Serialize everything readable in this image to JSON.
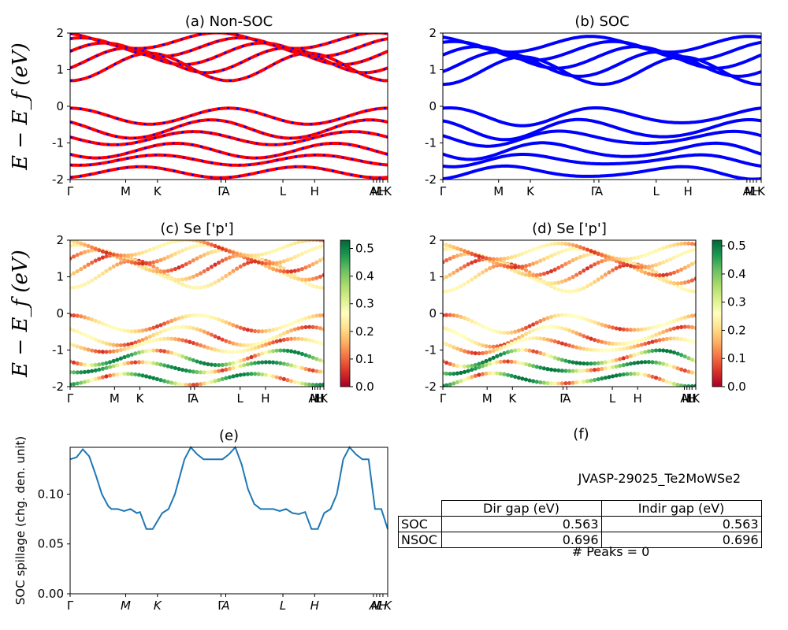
{
  "chart_data": [
    {
      "id": "a",
      "type": "line",
      "title": "(a) Non-SOC",
      "ylabel": "E − E_f (eV)",
      "ylim": [
        -2,
        2
      ],
      "yticks": [
        -2,
        -1,
        0,
        1,
        2
      ],
      "kpath_labels": [
        "Γ",
        "M",
        "K",
        "Γ",
        "A",
        "L",
        "H",
        "A",
        "M",
        "L",
        "H",
        "K"
      ],
      "series": [
        {
          "name": "",
          "color": "#ff0000"
        },
        {
          "name": "",
          "color": "#0000ff"
        }
      ]
    },
    {
      "id": "b",
      "type": "line",
      "title": "(b) SOC",
      "ylim": [
        -2,
        2
      ],
      "yticks": [
        -2,
        -1,
        0,
        1,
        2
      ],
      "kpath_labels": [
        "Γ",
        "M",
        "K",
        "Γ",
        "A",
        "L",
        "H",
        "A",
        "M",
        "L",
        "H",
        "K"
      ],
      "series": [
        {
          "name": "",
          "color": "#0000ff"
        }
      ]
    },
    {
      "id": "c",
      "type": "scatter",
      "title": "(c)  Se ['p']",
      "ylabel": "E − E_f (eV)",
      "ylim": [
        -2,
        2
      ],
      "yticks": [
        -2,
        -1,
        0,
        1,
        2
      ],
      "kpath_labels": [
        "Γ",
        "M",
        "K",
        "Γ",
        "A",
        "L",
        "H",
        "A",
        "M",
        "L",
        "H",
        "K"
      ],
      "colorbar": {
        "min": 0.0,
        "max": 0.53,
        "ticks": [
          "0.0",
          "0.1",
          "0.2",
          "0.3",
          "0.4",
          "0.5"
        ],
        "cmap": "RdYlGn"
      }
    },
    {
      "id": "d",
      "type": "scatter",
      "title": "(d) Se ['p']",
      "ylim": [
        -2,
        2
      ],
      "yticks": [
        -2,
        -1,
        0,
        1,
        2
      ],
      "kpath_labels": [
        "Γ",
        "M",
        "K",
        "Γ",
        "A",
        "L",
        "H",
        "A",
        "M",
        "L",
        "H",
        "K"
      ],
      "colorbar": {
        "min": 0.0,
        "max": 0.52,
        "ticks": [
          "0.0",
          "0.1",
          "0.2",
          "0.3",
          "0.4",
          "0.5"
        ],
        "cmap": "RdYlGn"
      }
    },
    {
      "id": "e",
      "type": "line",
      "title": "(e)",
      "ylabel": "SOC spillage (chg. den. unit)",
      "ylim": [
        0,
        0.147
      ],
      "yticks": [
        "0.00",
        "0.05",
        "0.10"
      ],
      "kpath_labels": [
        "Γ",
        "M",
        "K",
        "Γ",
        "A",
        "L",
        "H",
        "A",
        "M",
        "L",
        "H",
        "K"
      ],
      "series": [
        {
          "name": "",
          "color": "#1f77b4",
          "x": [
            0,
            0.02,
            0.04,
            0.06,
            0.08,
            0.1,
            0.12,
            0.13,
            0.15,
            0.17,
            0.19,
            0.21,
            0.22,
            0.24,
            0.26,
            0.29,
            0.31,
            0.33,
            0.36,
            0.38,
            0.4,
            0.42,
            0.44,
            0.46,
            0.48,
            0.5,
            0.52,
            0.54,
            0.56,
            0.58,
            0.6,
            0.62,
            0.64,
            0.66,
            0.68,
            0.7,
            0.72,
            0.74,
            0.76,
            0.78,
            0.8,
            0.82,
            0.84,
            0.86,
            0.88,
            0.9,
            0.92,
            0.94,
            0.96,
            0.98,
            1.0
          ],
          "y": [
            0.135,
            0.137,
            0.145,
            0.138,
            0.12,
            0.1,
            0.088,
            0.085,
            0.085,
            0.083,
            0.085,
            0.081,
            0.082,
            0.065,
            0.065,
            0.081,
            0.085,
            0.1,
            0.135,
            0.147,
            0.14,
            0.135,
            0.135,
            0.135,
            0.135,
            0.14,
            0.147,
            0.13,
            0.105,
            0.09,
            0.085,
            0.085,
            0.085,
            0.083,
            0.085,
            0.081,
            0.08,
            0.082,
            0.065,
            0.065,
            0.081,
            0.085,
            0.1,
            0.135,
            0.147,
            0.14,
            0.135,
            0.135,
            0.085,
            0.085,
            0.065
          ]
        }
      ]
    }
  ],
  "table": {
    "title": "(f)",
    "name": "JVASP-29025_Te2MoWSe2",
    "headers": [
      "",
      "Dir gap (eV)",
      "Indir gap (eV)"
    ],
    "rows": [
      [
        "SOC",
        "0.563",
        "0.563"
      ],
      [
        "NSOC",
        "0.696",
        "0.696"
      ]
    ],
    "footer": "# Peaks = 0"
  }
}
